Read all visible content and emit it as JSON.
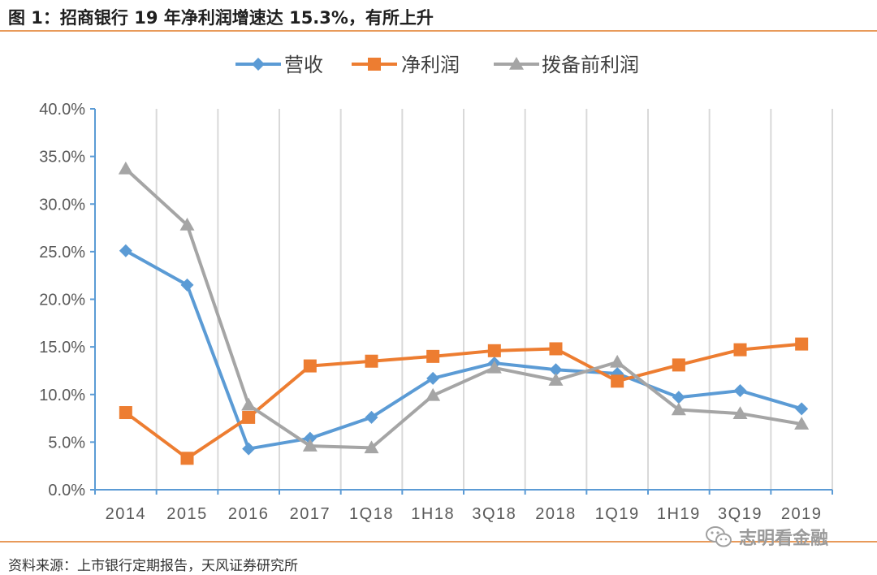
{
  "figure": {
    "title": "图 1：招商银行 19 年净利润增速达 15.3%，有所上升",
    "source": "资料来源：上市银行定期报告，天风证券研究所",
    "watermark": "志明看金融"
  },
  "colors": {
    "revenue": "#5b9bd5",
    "net_profit": "#ed7d31",
    "ppop": "#a5a5a5",
    "rule": "#e89a5a",
    "axis": "#5b9bd5",
    "grid": "#d9d9d9"
  },
  "chart_data": {
    "type": "line",
    "categories": [
      "2014",
      "2015",
      "2016",
      "2017",
      "1Q18",
      "1H18",
      "3Q18",
      "2018",
      "1Q19",
      "1H19",
      "3Q19",
      "2019"
    ],
    "series": [
      {
        "name": "营收",
        "marker": "diamond",
        "color": "#5b9bd5",
        "values": [
          0.251,
          0.215,
          0.043,
          0.054,
          0.076,
          0.117,
          0.133,
          0.126,
          0.122,
          0.097,
          0.104,
          0.085
        ]
      },
      {
        "name": "净利润",
        "marker": "square",
        "color": "#ed7d31",
        "values": [
          0.081,
          0.033,
          0.076,
          0.13,
          0.135,
          0.14,
          0.146,
          0.148,
          0.114,
          0.131,
          0.147,
          0.153
        ]
      },
      {
        "name": "拨备前利润",
        "marker": "triangle",
        "color": "#a5a5a5",
        "values": [
          0.337,
          0.278,
          0.089,
          0.046,
          0.044,
          0.099,
          0.128,
          0.115,
          0.134,
          0.084,
          0.08,
          0.069
        ]
      }
    ],
    "ylim": [
      0,
      0.4
    ],
    "yticks": [
      "0.0%",
      "5.0%",
      "10.0%",
      "15.0%",
      "20.0%",
      "25.0%",
      "30.0%",
      "35.0%",
      "40.0%"
    ],
    "y_format": "percent",
    "grid": "vertical",
    "legend": "top-center"
  }
}
